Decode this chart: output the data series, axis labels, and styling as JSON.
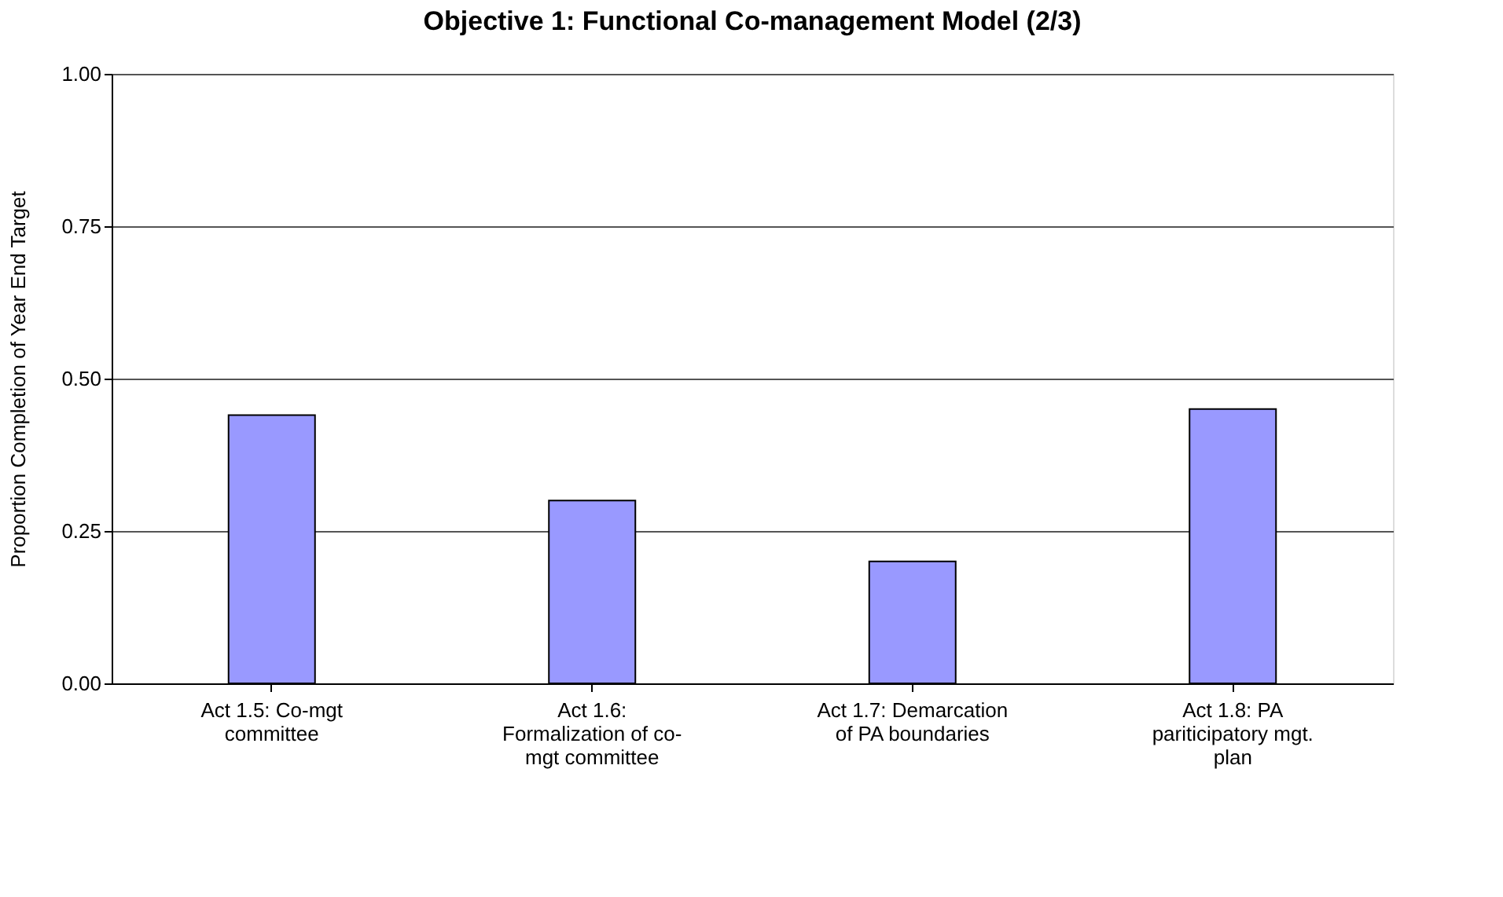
{
  "chart_data": {
    "type": "bar",
    "title": "Objective 1: Functional Co-management Model (2/3)",
    "ylabel": "Proportion Completion of Year End Target",
    "categories": [
      "Act 1.5: Co-mgt committee",
      "Act 1.6: Formalization of co-mgt committee",
      "Act 1.7: Demarcation of PA boundaries",
      "Act 1.8: PA pariticipatory mgt. plan"
    ],
    "values": [
      0.44,
      0.3,
      0.2,
      0.45
    ],
    "color": "#9999ff",
    "ylim": [
      0,
      1
    ],
    "yticks": [
      {
        "value": 0,
        "label": "0.00"
      },
      {
        "value": 0.25,
        "label": "0.25"
      },
      {
        "value": 0.5,
        "label": "0.50"
      },
      {
        "value": 0.75,
        "label": "0.75"
      },
      {
        "value": 1,
        "label": "1.00"
      }
    ],
    "grid": "y"
  }
}
